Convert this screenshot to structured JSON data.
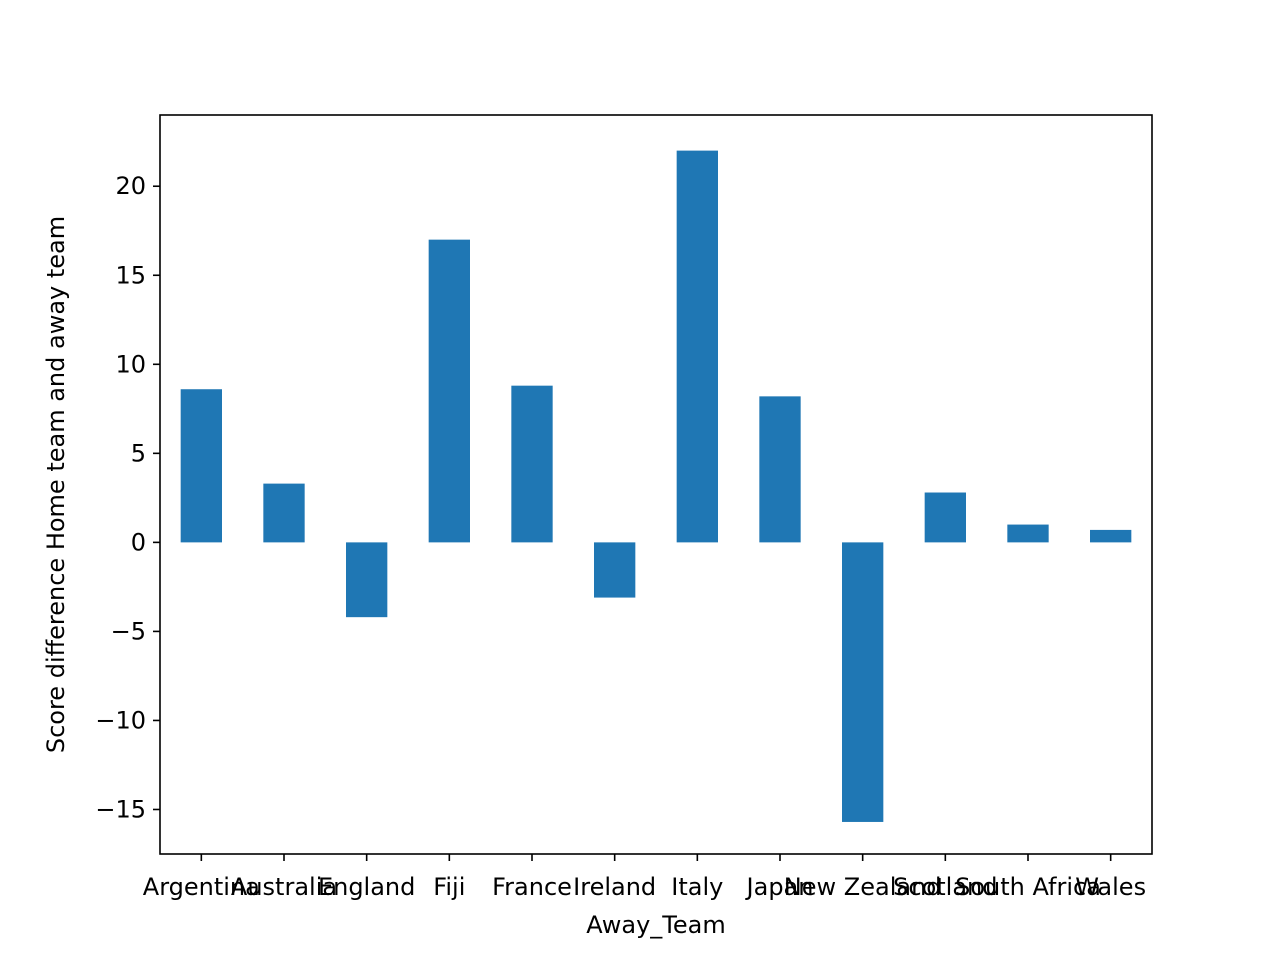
{
  "chart_data": {
    "type": "bar",
    "title": "",
    "xlabel": "Away_Team",
    "ylabel": "Score difference Home team and away team",
    "categories": [
      "Argentina",
      "Australia",
      "England",
      "Fiji",
      "France",
      "Ireland",
      "Italy",
      "Japan",
      "New Zealand",
      "Scotland",
      "South Africa",
      "Wales"
    ],
    "values": [
      8.6,
      3.3,
      -4.2,
      17.0,
      8.8,
      -3.1,
      22.0,
      8.2,
      -15.7,
      2.8,
      1.0,
      0.7
    ],
    "ylim": [
      -17.5,
      24.0
    ],
    "yticks": [
      -15,
      -10,
      -5,
      0,
      5,
      10,
      15,
      20
    ],
    "ytick_labels": [
      "−15",
      "−10",
      "−5",
      "0",
      "5",
      "10",
      "15",
      "20"
    ],
    "bar_color": "#1f77b4",
    "grid": false,
    "legend": "none"
  }
}
